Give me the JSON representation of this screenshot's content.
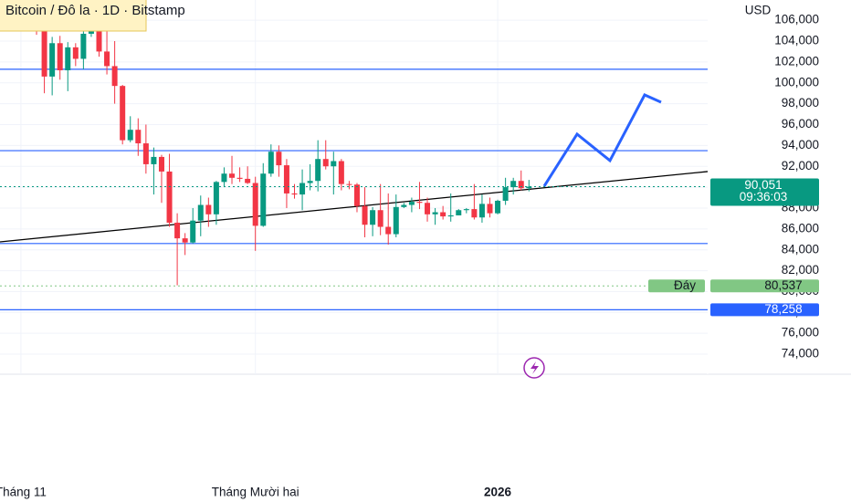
{
  "chart_data": {
    "type": "candlestick",
    "title": "Bitcoin / Đô la · 1D · Bitstamp",
    "currency": "USD",
    "categories": [
      "Tháng 11",
      null,
      null,
      null,
      null,
      null,
      null,
      null,
      null,
      null,
      null,
      null,
      null,
      null,
      null,
      null,
      null,
      null,
      null,
      null,
      null,
      null,
      null,
      null,
      null,
      null,
      null,
      null,
      null,
      null,
      "Tháng Mười hai",
      null,
      null,
      null,
      null,
      null,
      null,
      null,
      null,
      null,
      null,
      null,
      null,
      null,
      null,
      null,
      null,
      null,
      null,
      null,
      null,
      null,
      null,
      null,
      null,
      null,
      null,
      null,
      null,
      null,
      null,
      "2026",
      null,
      null,
      null,
      null
    ],
    "open": [
      null,
      null,
      107600,
      105000,
      100600,
      103800,
      101200,
      103400,
      102300,
      104700,
      106000,
      103000,
      101600,
      99700,
      94500,
      95500,
      94200,
      92200,
      92900,
      91500,
      86600,
      85100,
      84700,
      86800,
      88300,
      87400,
      90500,
      91300,
      90900,
      90800,
      90400,
      86300,
      91300,
      93400,
      92100,
      89400,
      89300,
      90400,
      90600,
      92700,
      92000,
      92500,
      90300,
      90250,
      88200,
      86400,
      87800,
      86200,
      85500,
      88100,
      88300,
      88600,
      88500,
      87400,
      87600,
      87200,
      87300,
      87800,
      87900,
      87100,
      88400,
      87500,
      88700,
      90000,
      90600,
      89900
    ],
    "high": [
      null,
      null,
      108000,
      105500,
      104400,
      104500,
      103900,
      103800,
      105000,
      106600,
      107300,
      105300,
      104000,
      99800,
      96800,
      96600,
      96000,
      93800,
      93100,
      93200,
      87500,
      85600,
      88000,
      89200,
      89000,
      90600,
      91900,
      93000,
      91900,
      92000,
      91000,
      92300,
      94100,
      94000,
      92700,
      90300,
      91700,
      92200,
      94500,
      94500,
      93400,
      92700,
      90600,
      90400,
      90000,
      88100,
      90300,
      89400,
      89300,
      88500,
      89000,
      90500,
      89000,
      88000,
      88200,
      89400,
      87900,
      88000,
      90300,
      89300,
      89000,
      88800,
      90900,
      90900,
      91600,
      90700
    ],
    "low": [
      null,
      null,
      104600,
      99000,
      98800,
      100300,
      99200,
      101600,
      101300,
      104400,
      102500,
      100800,
      98000,
      94100,
      94300,
      93000,
      91300,
      89300,
      88500,
      86200,
      80600,
      83500,
      84600,
      85300,
      86200,
      86400,
      90000,
      90300,
      90500,
      90300,
      83900,
      86200,
      91000,
      91000,
      88000,
      88900,
      87800,
      89700,
      89600,
      91700,
      89300,
      89700,
      89800,
      87600,
      85200,
      85300,
      85400,
      84500,
      85200,
      88000,
      87600,
      87900,
      86700,
      86400,
      86900,
      86700,
      87300,
      87500,
      86900,
      86600,
      87100,
      87400,
      88300,
      89300,
      89700,
      89600
    ],
    "close": [
      null,
      null,
      105000,
      100600,
      103800,
      101200,
      103400,
      102300,
      104700,
      106000,
      103000,
      101600,
      99700,
      94500,
      95500,
      94200,
      92200,
      92900,
      91500,
      86600,
      85100,
      84700,
      86800,
      88300,
      87400,
      90500,
      91300,
      90900,
      90800,
      90400,
      86300,
      91300,
      93400,
      92100,
      89400,
      89300,
      90400,
      90600,
      92700,
      92000,
      92500,
      90300,
      90250,
      88200,
      86400,
      87800,
      86200,
      85500,
      88100,
      88300,
      88600,
      88500,
      87400,
      87600,
      87200,
      87300,
      87800,
      87900,
      87100,
      88400,
      87500,
      88700,
      90000,
      90600,
      89900,
      90051
    ],
    "up_color": "#089981",
    "down_color": "#f23645",
    "ylim": [
      72080,
      107935
    ],
    "yticks": [
      {
        "value": 74000,
        "label": "74,000"
      },
      {
        "value": 76000,
        "label": "76,000"
      },
      {
        "value": 78000,
        "label": "78,000"
      },
      {
        "value": 80000,
        "label": "80,000"
      },
      {
        "value": 82000,
        "label": "82,000"
      },
      {
        "value": 84000,
        "label": "84,000"
      },
      {
        "value": 86000,
        "label": "86,000"
      },
      {
        "value": 88000,
        "label": "88,000"
      },
      {
        "value": 90000,
        "label": "90,000"
      },
      {
        "value": 92000,
        "label": "92,000"
      },
      {
        "value": 94000,
        "label": "94,000"
      },
      {
        "value": 96000,
        "label": "96,000"
      },
      {
        "value": 98000,
        "label": "98,000"
      },
      {
        "value": 100000,
        "label": "100,000"
      },
      {
        "value": 102000,
        "label": "102,000"
      },
      {
        "value": 104000,
        "label": "104,000"
      },
      {
        "value": 106000,
        "label": "106,000"
      }
    ],
    "grid": true,
    "level_lines": {
      "color": "#2962ff",
      "values": [
        101300,
        93500,
        84600,
        78258
      ],
      "value_labels": [
        null,
        null,
        null,
        "78,258"
      ]
    },
    "last_price": {
      "value": 90051,
      "label": "90,051",
      "countdown": "09:36:03",
      "color": "#089981"
    },
    "low_marker": {
      "name": "Đáy",
      "value": 80537,
      "label": "80,537",
      "color": "#81c784"
    },
    "trendline": {
      "values": [
        84760,
        91500
      ],
      "color": "#000000"
    },
    "projection": {
      "values": [
        90100,
        95080,
        92550,
        98840,
        98140
      ],
      "color": "#2962ff"
    }
  }
}
